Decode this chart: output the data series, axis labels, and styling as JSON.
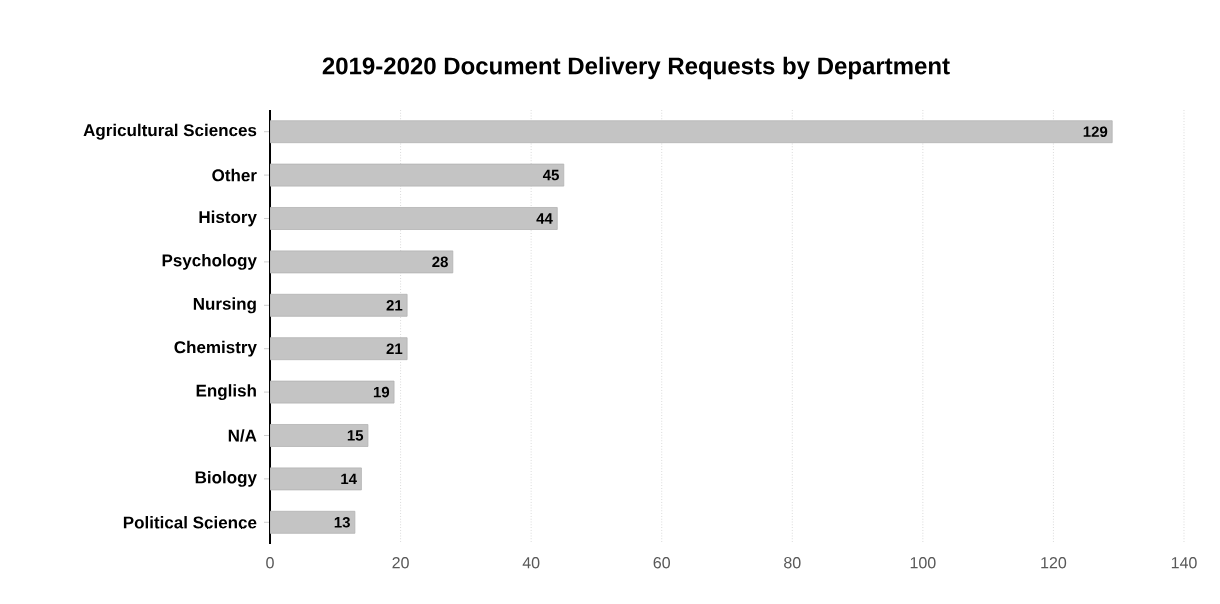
{
  "chart_data": {
    "type": "bar",
    "orientation": "horizontal",
    "title": "2019-2020 Document Delivery Requests by Department",
    "categories": [
      "Agricultural Sciences",
      "Other",
      "History",
      "Psychology",
      "Nursing",
      "Chemistry",
      "English",
      "N/A",
      "Biology",
      "Political Science"
    ],
    "values": [
      129,
      45,
      44,
      28,
      21,
      21,
      19,
      15,
      14,
      13
    ],
    "color": "#c4c4c4",
    "xlim": [
      0,
      140
    ],
    "xticks": [
      0,
      20,
      40,
      60,
      80,
      100,
      120,
      140
    ],
    "grid": "x",
    "data_labels": true
  }
}
